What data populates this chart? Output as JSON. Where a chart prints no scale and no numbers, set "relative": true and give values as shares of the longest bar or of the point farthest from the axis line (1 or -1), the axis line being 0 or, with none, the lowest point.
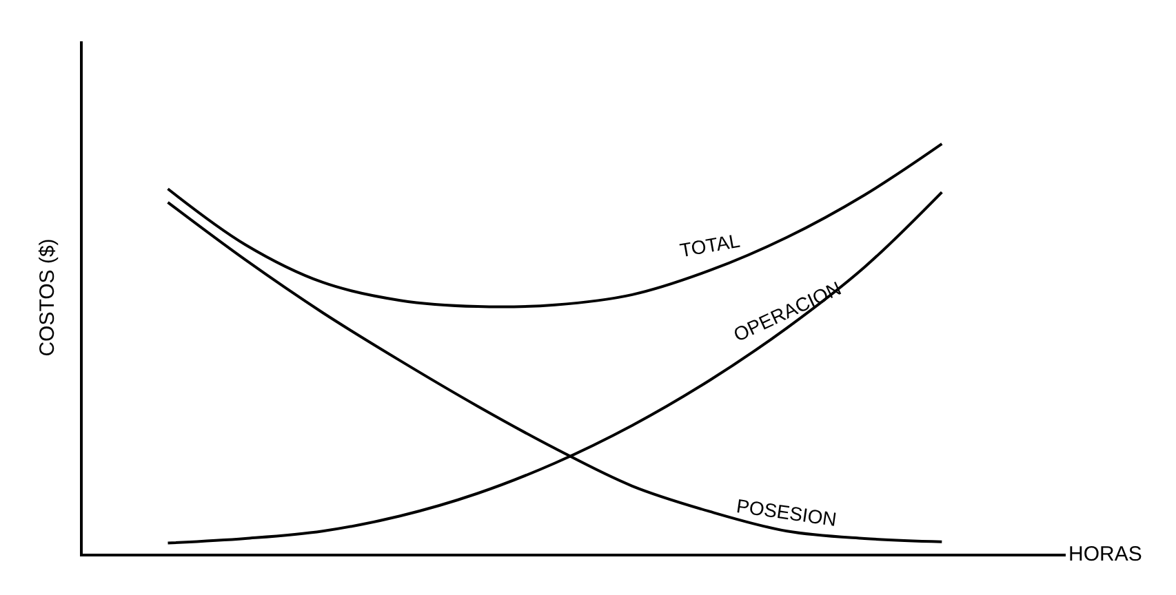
{
  "chart_data": {
    "type": "line",
    "relative": true,
    "xlabel": "HORAS",
    "ylabel": "COSTOS ($)",
    "legend": false,
    "marker": "none",
    "line_style": "solid",
    "categories": [
      null,
      null,
      null,
      null,
      null,
      null,
      null,
      null,
      null,
      null,
      null
    ],
    "series": [
      {
        "name": "TOTAL",
        "color": "#000000",
        "values": [
          0.89,
          0.754,
          0.662,
          0.618,
          0.603,
          0.607,
          0.632,
          0.691,
          0.772,
          0.875,
          1
        ]
      },
      {
        "name": "OPERACION",
        "color": "#000000",
        "values": [
          0.026,
          0.037,
          0.055,
          0.092,
          0.147,
          0.221,
          0.313,
          0.423,
          0.551,
          0.699,
          0.882
        ]
      },
      {
        "name": "POSESION",
        "color": "#000000",
        "values": [
          0.857,
          0.717,
          0.588,
          0.471,
          0.36,
          0.257,
          0.165,
          0.103,
          0.055,
          0.037,
          0.029
        ]
      }
    ]
  }
}
